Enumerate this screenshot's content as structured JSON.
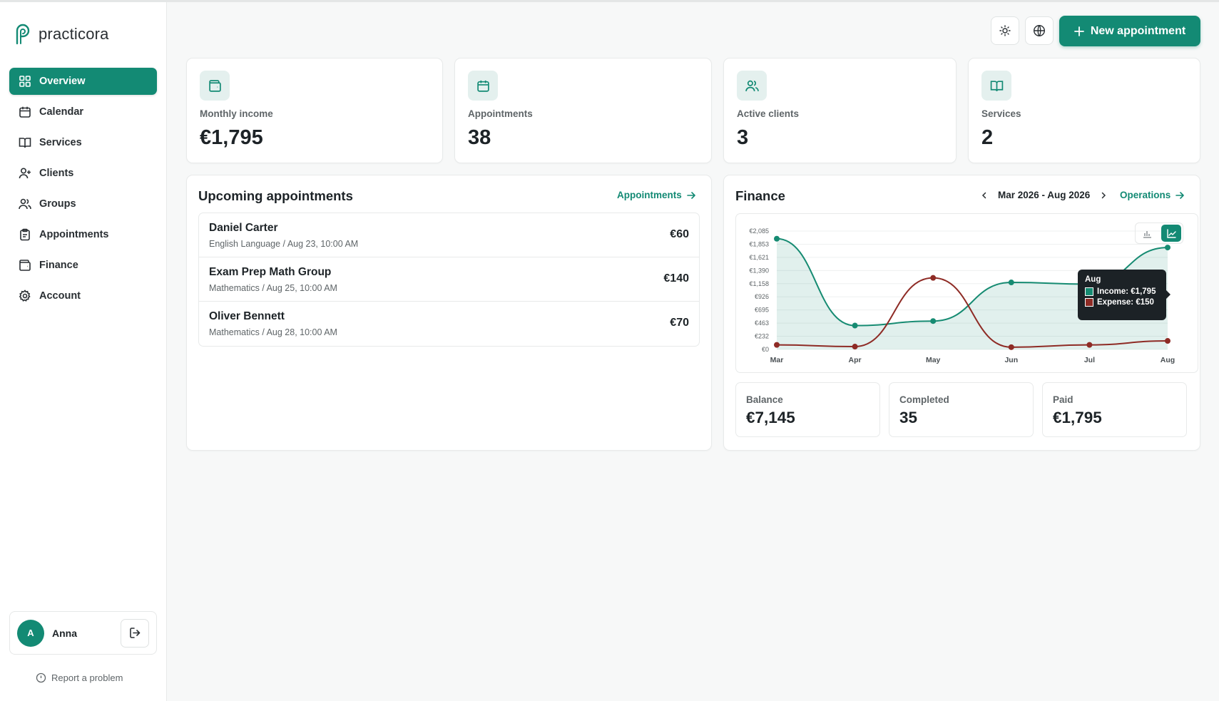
{
  "app": {
    "name": "practicora"
  },
  "sidebar": {
    "items": [
      {
        "label": "Overview",
        "icon": "grid-icon",
        "active": true
      },
      {
        "label": "Calendar",
        "icon": "calendar-icon"
      },
      {
        "label": "Services",
        "icon": "book-icon"
      },
      {
        "label": "Clients",
        "icon": "user-plus-icon"
      },
      {
        "label": "Groups",
        "icon": "users-icon"
      },
      {
        "label": "Appointments",
        "icon": "clipboard-icon"
      },
      {
        "label": "Finance",
        "icon": "wallet-icon"
      },
      {
        "label": "Account",
        "icon": "gear-icon"
      }
    ],
    "user": {
      "initial": "A",
      "name": "Anna"
    },
    "report_label": "Report a problem"
  },
  "header": {
    "new_appointment_label": "New appointment"
  },
  "stats": [
    {
      "label": "Monthly income",
      "value": "€1,795",
      "icon": "wallet-icon"
    },
    {
      "label": "Appointments",
      "value": "38",
      "icon": "calendar-icon"
    },
    {
      "label": "Active clients",
      "value": "3",
      "icon": "users-icon"
    },
    {
      "label": "Services",
      "value": "2",
      "icon": "book-icon"
    }
  ],
  "upcoming": {
    "title": "Upcoming appointments",
    "link_label": "Appointments",
    "items": [
      {
        "name": "Daniel Carter",
        "detail": "English Language / Aug 23, 10:00 AM",
        "price": "€60"
      },
      {
        "name": "Exam Prep Math Group",
        "detail": "Mathematics / Aug 25, 10:00 AM",
        "price": "€140"
      },
      {
        "name": "Oliver Bennett",
        "detail": "Mathematics / Aug 28, 10:00 AM",
        "price": "€70"
      }
    ]
  },
  "finance": {
    "title": "Finance",
    "range_label": "Mar 2026 - Aug 2026",
    "link_label": "Operations",
    "tooltip": {
      "month": "Aug",
      "income_label": "Income: €1,795",
      "expense_label": "Expense: €150"
    },
    "summary": [
      {
        "label": "Balance",
        "value": "€7,145"
      },
      {
        "label": "Completed",
        "value": "35"
      },
      {
        "label": "Paid",
        "value": "€1,795"
      }
    ]
  },
  "chart_data": {
    "type": "line",
    "x": [
      "Mar",
      "Apr",
      "May",
      "Jun",
      "Jul",
      "Aug"
    ],
    "y_ticks": [
      "€2,085",
      "€1,853",
      "€1,621",
      "€1,390",
      "€1,158",
      "€926",
      "€695",
      "€463",
      "€232",
      "€0"
    ],
    "ylim": [
      0,
      2085
    ],
    "series": [
      {
        "name": "Income",
        "values": [
          1950,
          420,
          500,
          1180,
          1150,
          1795
        ],
        "color": "#168b72"
      },
      {
        "name": "Expense",
        "values": [
          80,
          50,
          1260,
          40,
          80,
          150
        ],
        "color": "#8e2b25"
      }
    ],
    "grid": true
  }
}
